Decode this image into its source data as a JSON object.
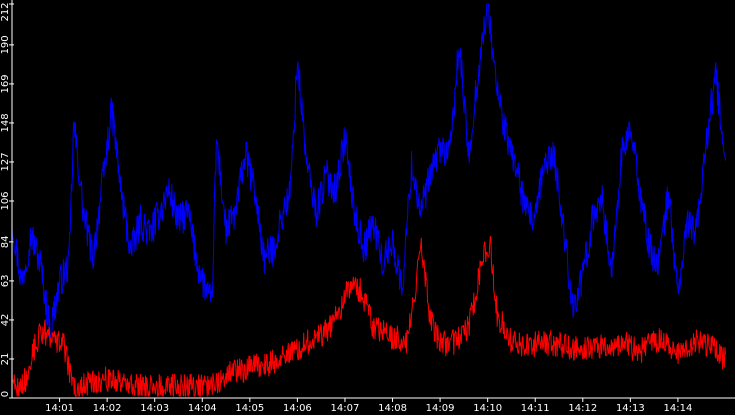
{
  "chart_data": {
    "type": "line",
    "background": "#000000",
    "axis_color": "#ffffff",
    "title": "",
    "xlabel": "",
    "ylabel": "",
    "x_tick_labels": [
      "14:01",
      "14:02",
      "14:03",
      "14:04",
      "14:05",
      "14:06",
      "14:07",
      "14:08",
      "14:09",
      "14:10",
      "14:11",
      "14:12",
      "14:13",
      "14:14"
    ],
    "y_tick_labels": [
      "0",
      "21",
      "42",
      "63",
      "84",
      "106",
      "127",
      "148",
      "169",
      "190",
      "212"
    ],
    "x_range_minutes": [
      0,
      15.2
    ],
    "ylim": [
      0,
      212
    ],
    "legend": "none",
    "series": [
      {
        "color": "#0000ff",
        "points": [
          [
            0.0,
            95
          ],
          [
            0.2,
            62
          ],
          [
            0.4,
            88
          ],
          [
            0.6,
            72
          ],
          [
            0.8,
            36
          ],
          [
            1.0,
            62
          ],
          [
            1.2,
            72
          ],
          [
            1.3,
            148
          ],
          [
            1.5,
            100
          ],
          [
            1.7,
            75
          ],
          [
            1.9,
            115
          ],
          [
            2.1,
            155
          ],
          [
            2.3,
            110
          ],
          [
            2.5,
            78
          ],
          [
            2.7,
            95
          ],
          [
            2.9,
            88
          ],
          [
            3.1,
            100
          ],
          [
            3.3,
            112
          ],
          [
            3.5,
            95
          ],
          [
            3.7,
            100
          ],
          [
            3.9,
            72
          ],
          [
            4.05,
            60
          ],
          [
            4.2,
            50
          ],
          [
            4.3,
            140
          ],
          [
            4.5,
            90
          ],
          [
            4.7,
            100
          ],
          [
            4.9,
            132
          ],
          [
            5.1,
            112
          ],
          [
            5.3,
            75
          ],
          [
            5.5,
            80
          ],
          [
            5.7,
            100
          ],
          [
            5.85,
            110
          ],
          [
            6.0,
            182
          ],
          [
            6.2,
            125
          ],
          [
            6.4,
            100
          ],
          [
            6.6,
            120
          ],
          [
            6.8,
            112
          ],
          [
            7.0,
            140
          ],
          [
            7.2,
            100
          ],
          [
            7.4,
            80
          ],
          [
            7.6,
            95
          ],
          [
            7.8,
            72
          ],
          [
            8.0,
            85
          ],
          [
            8.2,
            58
          ],
          [
            8.4,
            125
          ],
          [
            8.6,
            100
          ],
          [
            8.8,
            120
          ],
          [
            9.0,
            135
          ],
          [
            9.2,
            130
          ],
          [
            9.4,
            190
          ],
          [
            9.6,
            130
          ],
          [
            9.8,
            175
          ],
          [
            10.0,
            212
          ],
          [
            10.2,
            165
          ],
          [
            10.4,
            140
          ],
          [
            10.6,
            125
          ],
          [
            10.8,
            100
          ],
          [
            11.0,
            95
          ],
          [
            11.2,
            128
          ],
          [
            11.4,
            130
          ],
          [
            11.6,
            90
          ],
          [
            11.8,
            48
          ],
          [
            12.0,
            65
          ],
          [
            12.2,
            95
          ],
          [
            12.4,
            110
          ],
          [
            12.6,
            65
          ],
          [
            12.8,
            128
          ],
          [
            13.0,
            145
          ],
          [
            13.2,
            112
          ],
          [
            13.4,
            80
          ],
          [
            13.6,
            72
          ],
          [
            13.8,
            112
          ],
          [
            14.0,
            55
          ],
          [
            14.2,
            95
          ],
          [
            14.4,
            90
          ],
          [
            14.6,
            140
          ],
          [
            14.8,
            175
          ],
          [
            15.0,
            120
          ]
        ]
      },
      {
        "color": "#ff0000",
        "points": [
          [
            0.0,
            12
          ],
          [
            0.1,
            5
          ],
          [
            0.3,
            10
          ],
          [
            0.5,
            30
          ],
          [
            0.65,
            36
          ],
          [
            0.9,
            32
          ],
          [
            1.1,
            28
          ],
          [
            1.2,
            15
          ],
          [
            1.35,
            3
          ],
          [
            1.6,
            8
          ],
          [
            2.0,
            10
          ],
          [
            2.5,
            7
          ],
          [
            3.0,
            6
          ],
          [
            3.5,
            6
          ],
          [
            4.0,
            6
          ],
          [
            4.3,
            9
          ],
          [
            4.6,
            14
          ],
          [
            5.0,
            16
          ],
          [
            5.4,
            18
          ],
          [
            5.8,
            24
          ],
          [
            6.2,
            30
          ],
          [
            6.6,
            36
          ],
          [
            6.9,
            48
          ],
          [
            7.1,
            60
          ],
          [
            7.35,
            58
          ],
          [
            7.6,
            38
          ],
          [
            8.0,
            33
          ],
          [
            8.3,
            30
          ],
          [
            8.4,
            45
          ],
          [
            8.6,
            80
          ],
          [
            8.8,
            42
          ],
          [
            9.0,
            30
          ],
          [
            9.2,
            28
          ],
          [
            9.6,
            38
          ],
          [
            9.9,
            75
          ],
          [
            10.05,
            84
          ],
          [
            10.2,
            45
          ],
          [
            10.5,
            30
          ],
          [
            10.8,
            28
          ],
          [
            11.2,
            30
          ],
          [
            11.6,
            28
          ],
          [
            12.0,
            26
          ],
          [
            12.4,
            28
          ],
          [
            12.8,
            30
          ],
          [
            13.2,
            25
          ],
          [
            13.6,
            32
          ],
          [
            14.0,
            24
          ],
          [
            14.4,
            30
          ],
          [
            14.8,
            28
          ],
          [
            15.0,
            20
          ]
        ]
      }
    ]
  }
}
